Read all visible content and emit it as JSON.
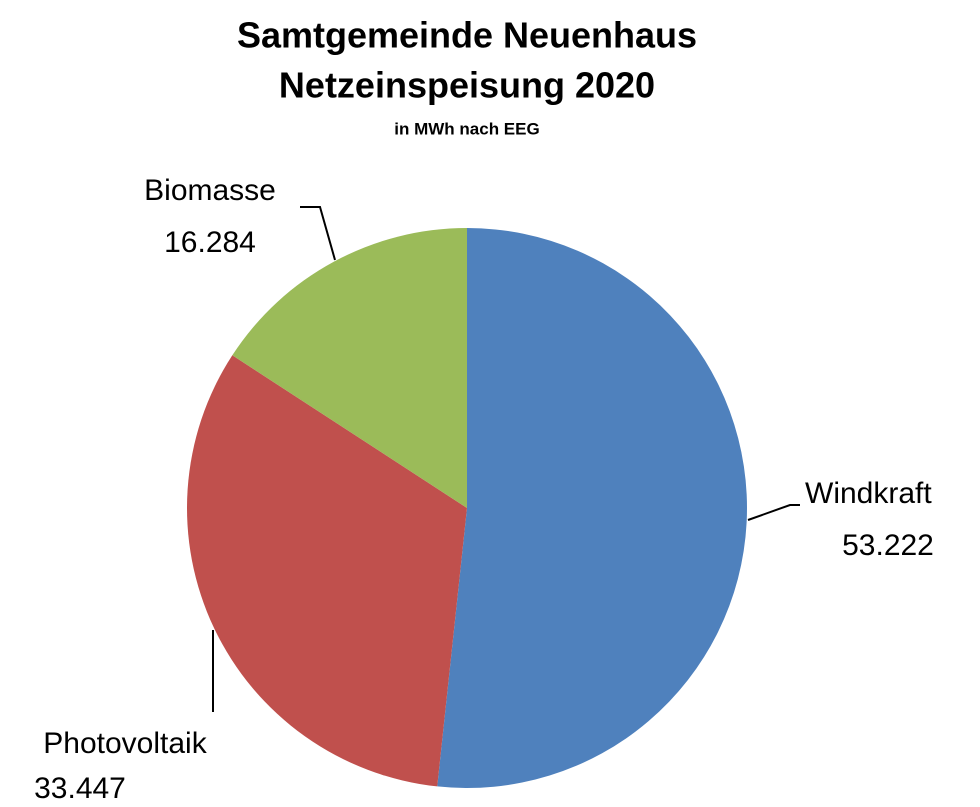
{
  "chart_data": {
    "type": "pie",
    "title": "Samtgemeinde Neuenhaus",
    "subtitle": "Netzeinspeisung 2020",
    "caption": "in MWh nach EEG",
    "categories": [
      "Windkraft",
      "Photovoltaik",
      "Biomasse"
    ],
    "values": [
      53222,
      33447,
      16284
    ],
    "value_labels": [
      "53.222",
      "33.447",
      "16.284"
    ],
    "colors": [
      "#4f81bd",
      "#c0504d",
      "#9bbb59"
    ]
  }
}
